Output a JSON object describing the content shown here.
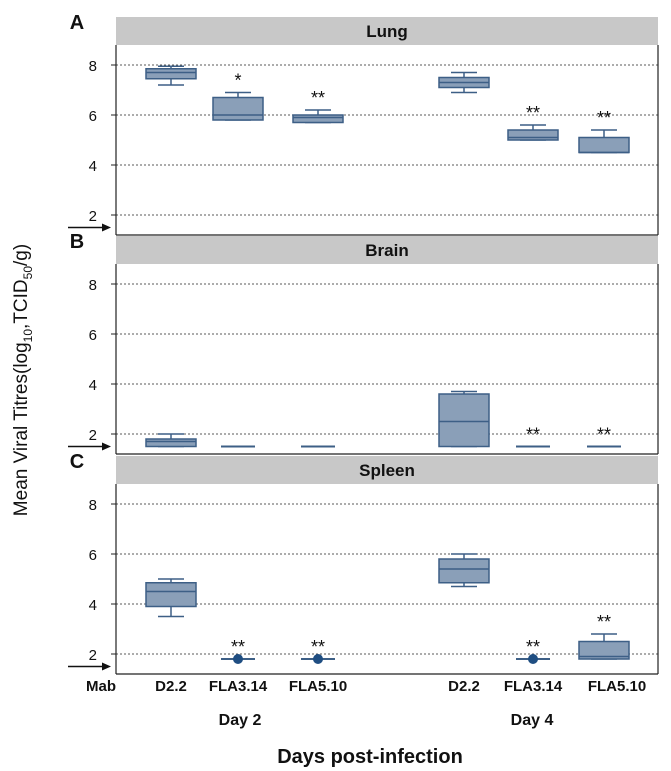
{
  "figure": {
    "ylabel_main": "Mean Viral Titres(log",
    "ylabel_sub1": "10",
    "ylabel_mid": ",TCID",
    "ylabel_sub2": "50",
    "ylabel_end": "/g)",
    "xlabel": "Days post-infection",
    "mab_label": "Mab",
    "day_labels": [
      "Day 2",
      "Day 4"
    ],
    "group_labels": [
      "D2.2",
      "FLA3.14",
      "FLA5.10",
      "D2.2",
      "FLA3.14",
      "FLA5.10"
    ]
  },
  "colors": {
    "box_fill": "#8a9fb8",
    "box_stroke": "#3d5f86",
    "header_fill": "#c8c8c8",
    "dot": "#1f4e82"
  },
  "chart_data": [
    {
      "type": "box",
      "panel": "A",
      "title": "Lung",
      "yticks": [
        2,
        4,
        6,
        8
      ],
      "ylim": [
        1.2,
        8.8
      ],
      "detection_limit": 1.5,
      "categories": [
        "D2.2",
        "FLA3.14",
        "FLA5.10",
        "D2.2",
        "FLA3.14",
        "FLA5.10"
      ],
      "boxes": [
        {
          "min": 7.2,
          "q1": 7.45,
          "median": 7.7,
          "q3": 7.85,
          "max": 7.95
        },
        {
          "min": 5.8,
          "q1": 5.8,
          "median": 6.0,
          "q3": 6.7,
          "max": 6.9
        },
        {
          "min": 5.7,
          "q1": 5.7,
          "median": 5.9,
          "q3": 6.0,
          "max": 6.2
        },
        {
          "min": 6.9,
          "q1": 7.1,
          "median": 7.3,
          "q3": 7.5,
          "max": 7.7
        },
        {
          "min": 5.0,
          "q1": 5.0,
          "median": 5.1,
          "q3": 5.4,
          "max": 5.6
        },
        {
          "min": 4.5,
          "q1": 4.5,
          "median": 4.5,
          "q3": 5.1,
          "max": 5.4
        }
      ],
      "significance": [
        "",
        "*",
        "**",
        "",
        "**",
        "**"
      ]
    },
    {
      "type": "box",
      "panel": "B",
      "title": "Brain",
      "yticks": [
        2,
        4,
        6,
        8
      ],
      "ylim": [
        1.2,
        8.8
      ],
      "detection_limit": 1.5,
      "categories": [
        "D2.2",
        "FLA3.14",
        "FLA5.10",
        "D2.2",
        "FLA3.14",
        "FLA5.10"
      ],
      "boxes": [
        {
          "min": 1.5,
          "q1": 1.5,
          "median": 1.7,
          "q3": 1.8,
          "max": 2.0
        },
        {
          "min": 1.5,
          "q1": 1.5,
          "median": 1.5,
          "q3": 1.5,
          "max": 1.5
        },
        {
          "min": 1.5,
          "q1": 1.5,
          "median": 1.5,
          "q3": 1.5,
          "max": 1.5
        },
        {
          "min": 1.5,
          "q1": 1.5,
          "median": 2.5,
          "q3": 3.6,
          "max": 3.7
        },
        {
          "min": 1.5,
          "q1": 1.5,
          "median": 1.5,
          "q3": 1.5,
          "max": 1.5
        },
        {
          "min": 1.5,
          "q1": 1.5,
          "median": 1.5,
          "q3": 1.5,
          "max": 1.5
        }
      ],
      "significance": [
        "",
        "",
        "",
        "",
        "**",
        "**"
      ]
    },
    {
      "type": "box",
      "panel": "C",
      "title": "Spleen",
      "yticks": [
        2,
        4,
        6,
        8
      ],
      "ylim": [
        1.2,
        8.8
      ],
      "detection_limit": 1.5,
      "categories": [
        "D2.2",
        "FLA3.14",
        "FLA5.10",
        "D2.2",
        "FLA3.14",
        "FLA5.10"
      ],
      "boxes": [
        {
          "min": 3.5,
          "q1": 3.9,
          "median": 4.5,
          "q3": 4.85,
          "max": 5.0
        },
        {
          "min": 1.8,
          "q1": 1.8,
          "median": 1.8,
          "q3": 1.8,
          "max": 1.8,
          "point": 1.8
        },
        {
          "min": 1.8,
          "q1": 1.8,
          "median": 1.8,
          "q3": 1.8,
          "max": 1.8,
          "point": 1.8
        },
        {
          "min": 4.7,
          "q1": 4.85,
          "median": 5.4,
          "q3": 5.8,
          "max": 6.0
        },
        {
          "min": 1.8,
          "q1": 1.8,
          "median": 1.8,
          "q3": 1.8,
          "max": 1.8,
          "point": 1.8
        },
        {
          "min": 1.8,
          "q1": 1.8,
          "median": 1.9,
          "q3": 2.5,
          "max": 2.8
        }
      ],
      "significance": [
        "",
        "**",
        "**",
        "",
        "**",
        "**"
      ]
    }
  ]
}
